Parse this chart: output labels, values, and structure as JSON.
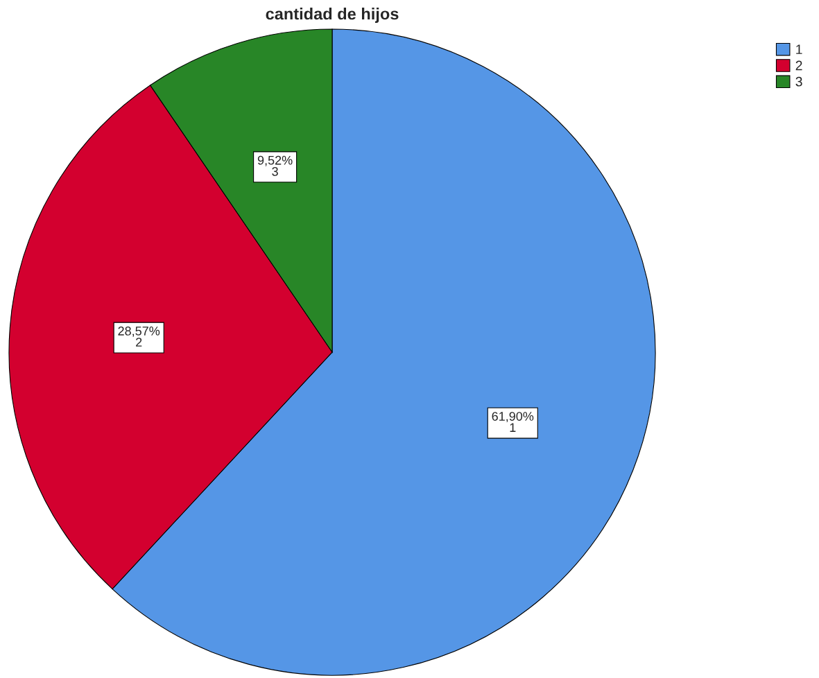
{
  "chart_data": {
    "type": "pie",
    "title": "cantidad de hijos",
    "categories": [
      "1",
      "2",
      "3"
    ],
    "values": [
      61.9,
      28.57,
      9.52
    ],
    "value_labels": [
      "61,90%",
      "28,57%",
      "9,52%"
    ],
    "colors": [
      "#5596e6",
      "#d3002f",
      "#288627"
    ],
    "legend": "top right"
  }
}
